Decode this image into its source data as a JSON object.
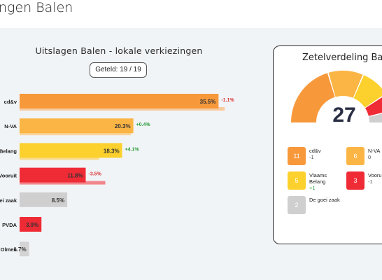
{
  "header": {
    "title": "ngen Balen"
  },
  "chart_data": {
    "type": "bar",
    "orientation": "horizontal",
    "title": "Uitslagen Balen - lokale verkiezingen",
    "counted_label": "Geteld: 19 / 19",
    "categories": [
      "cd&v",
      "N-VA",
      "Belang",
      "Vooruit",
      "goei zaak",
      "PVDA",
      "Olmen"
    ],
    "series": [
      {
        "values": [
          35.5,
          20.3,
          18.3,
          11.8,
          8.5,
          3.9,
          1.7
        ]
      }
    ],
    "previous_values": [
      36.6,
      19.9,
      14.2,
      15.3,
      null,
      null,
      null
    ],
    "value_labels": [
      "35.5%",
      "20.3%",
      "18.3%",
      "11.8%",
      "8.5%",
      "3.9%",
      "1.7%"
    ],
    "change_labels": [
      "-1.1%",
      "+0.4%",
      "+4.1%",
      "-3.5%",
      "",
      "",
      ""
    ],
    "colors": [
      "#f7993b",
      "#fbb545",
      "#fcd12d",
      "#ef2b36",
      "#cfcfcf",
      "#ee2a35",
      "#d4d4d4"
    ],
    "previous_colors": [
      "#f8caa0",
      "#fbd59c",
      "#f7db8e",
      "#f1868c",
      "",
      "",
      ""
    ],
    "change_colors": [
      "#d93a3a",
      "#2e9e3e",
      "#2e9e3e",
      "#d93a3a",
      "",
      "",
      ""
    ],
    "xlim": [
      0,
      45
    ]
  },
  "seats": {
    "title": "Zetelverdeling Balen",
    "total": "27",
    "arc": [
      {
        "party": "cd&v",
        "seats": 11,
        "color": "#f7993b"
      },
      {
        "party": "N-VA",
        "seats": 6,
        "color": "#fbb545"
      },
      {
        "party": "Vlaams Belang",
        "seats": 5,
        "color": "#fcd12d"
      },
      {
        "party": "Vooruit",
        "seats": 3,
        "color": "#ef2b36"
      },
      {
        "party": "De goei zaak",
        "seats": 2,
        "color": "#cfcfcf"
      }
    ],
    "legend": [
      {
        "seats": "11",
        "name": "cd&v",
        "diff": "-1",
        "color": "#f7993b",
        "diff_color": "#555555"
      },
      {
        "seats": "6",
        "name": "N-VA",
        "diff": "0",
        "color": "#fbb545",
        "diff_color": "#555555"
      },
      {
        "seats": "5",
        "name": "Vlaams Belang",
        "diff": "+1",
        "color": "#fcd12d",
        "diff_color": "#2e9e3e"
      },
      {
        "seats": "3",
        "name": "Vooruit",
        "diff": "-1",
        "color": "#ef2b36",
        "diff_color": "#555555"
      },
      {
        "seats": "2",
        "name": "De goei zaak",
        "diff": "",
        "color": "#cfcfcf",
        "diff_color": "#555555"
      }
    ]
  }
}
